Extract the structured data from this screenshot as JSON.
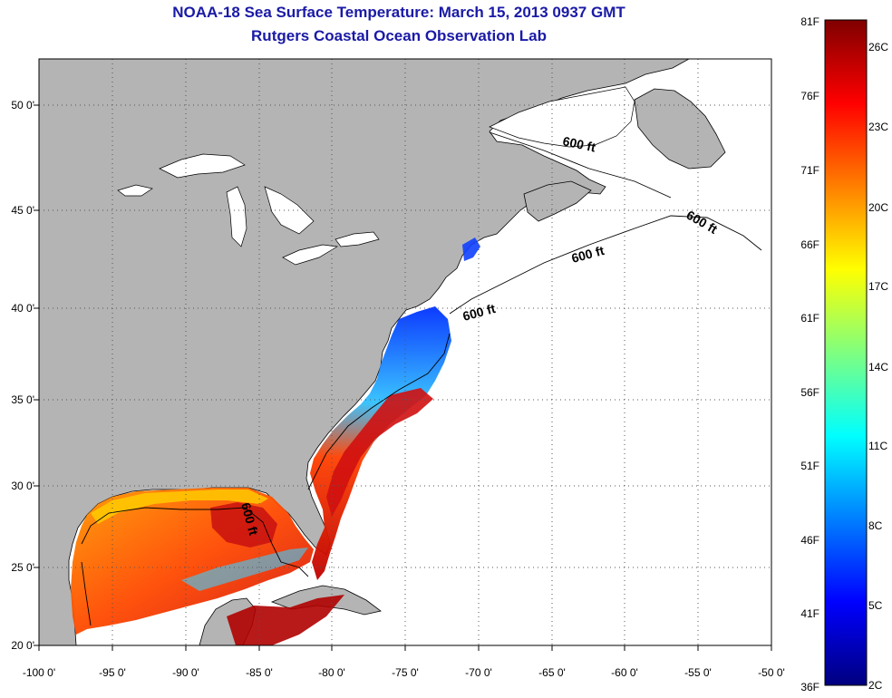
{
  "title": {
    "line1": "NOAA-18 Sea Surface Temperature:  March 15, 2013 0937 GMT",
    "line2": "Rutgers Coastal Ocean Observation Lab"
  },
  "map": {
    "lon_ticks": [
      "-100 0'",
      "-95 0'",
      "-90 0'",
      "-85 0'",
      "-80 0'",
      "-75 0'",
      "-70 0'",
      "-65 0'",
      "-60 0'",
      "-55 0'",
      "-50 0'"
    ],
    "lat_ticks": [
      "50 0'",
      "45 0'",
      "40 0'",
      "35 0'",
      "30 0'",
      "25 0'",
      "20 0'"
    ],
    "isobath_labels": [
      "600 ft",
      "600 ft",
      "600 ft",
      "600 ft",
      "600 ft"
    ],
    "land_color": "#b4b4b4",
    "ocean_color": "#ffffff"
  },
  "colorbar": {
    "fahrenheit_labels": [
      "81F",
      "76F",
      "71F",
      "66F",
      "61F",
      "56F",
      "51F",
      "46F",
      "41F",
      "36F"
    ],
    "celsius_labels": [
      "26C",
      "23C",
      "20C",
      "17C",
      "14C",
      "11C",
      "8C",
      "5C",
      "2C"
    ],
    "colors": [
      "#00007f",
      "#0000ff",
      "#007fff",
      "#00ffff",
      "#7fff7f",
      "#ffff00",
      "#ff7f00",
      "#ff0000",
      "#7f0000"
    ]
  }
}
